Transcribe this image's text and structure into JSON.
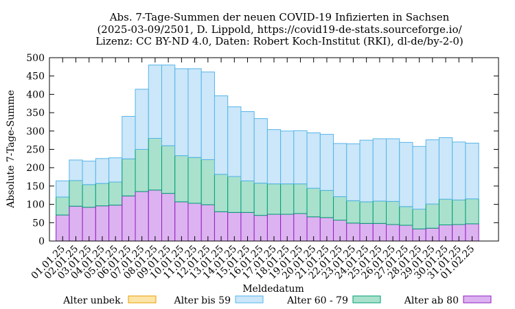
{
  "chart_data": {
    "type": "bar",
    "stacked": true,
    "title_lines": [
      "Abs. 7-Tage-Summen der neuen COVID-19 Infizierten in Sachsen",
      "(2025-03-09/2501, D. Lippold, https://covid19-de-stats.sourceforge.io/",
      "Lizenz: CC BY-ND 4.0, Daten: Robert Koch-Institut (RKI), dl-de/by-2-0)"
    ],
    "xlabel": "Meldedatum",
    "ylabel": "Absolute 7-Tage-Summe",
    "ylim": [
      0,
      500
    ],
    "yticks": [
      0,
      50,
      100,
      150,
      200,
      250,
      300,
      350,
      400,
      450,
      500
    ],
    "grid": false,
    "legend_position": "bottom",
    "categories": [
      "2024-12-31",
      "2025-01-01",
      "2025-01-02",
      "2025-01-03",
      "2025-01-04",
      "2025-01-05",
      "2025-01-06",
      "2025-01-07",
      "2025-01-08",
      "2025-01-09",
      "2025-01-10",
      "2025-01-11",
      "2025-01-12",
      "2025-01-13",
      "2025-01-14",
      "2025-01-15",
      "2025-01-16",
      "2025-01-17",
      "2025-01-18",
      "2025-01-19",
      "2025-01-20",
      "2025-01-21",
      "2025-01-22",
      "2025-01-23",
      "2025-01-24",
      "2025-01-25",
      "2025-01-26",
      "2025-01-27",
      "2025-01-28",
      "2025-01-29",
      "2025-01-30",
      "2025-01-31",
      "2025-02-01"
    ],
    "tick_labels": [
      "01.01.25",
      "02.01.25",
      "03.01.25",
      "04.01.25",
      "05.01.25",
      "06.01.25",
      "07.01.25",
      "08.01.25",
      "09.01.25",
      "10.01.25",
      "11.01.25",
      "12.01.25",
      "13.01.25",
      "14.01.25",
      "15.01.25",
      "16.01.25",
      "17.01.25",
      "18.01.25",
      "19.01.25",
      "20.01.25",
      "21.01.25",
      "22.01.25",
      "23.01.25",
      "24.01.25",
      "25.01.25",
      "26.01.25",
      "27.01.25",
      "28.01.25",
      "29.01.25",
      "30.01.25",
      "31.01.25",
      "01.02.25"
    ],
    "series": [
      {
        "name": "Alter unbek.",
        "fill": "#fde4a8",
        "stroke": "#e69f00",
        "values": [
          0,
          0,
          0,
          0,
          0,
          0,
          0,
          0,
          0,
          0,
          0,
          0,
          0,
          0,
          0,
          0,
          0,
          0,
          0,
          0,
          0,
          0,
          0,
          0,
          0,
          0,
          0,
          0,
          0,
          0,
          0,
          0,
          0
        ]
      },
      {
        "name": "Alter ab 80",
        "fill": "#ddb2f0",
        "stroke": "#8e1fbf",
        "values": [
          71,
          95,
          92,
          96,
          98,
          123,
          135,
          139,
          130,
          107,
          103,
          99,
          80,
          78,
          78,
          70,
          73,
          73,
          75,
          66,
          64,
          57,
          49,
          48,
          48,
          45,
          43,
          33,
          35,
          44,
          45,
          47,
          0
        ]
      },
      {
        "name": "Alter 60 - 79",
        "fill": "#a9e1cd",
        "stroke": "#009e73",
        "values": [
          49,
          70,
          62,
          61,
          63,
          101,
          115,
          141,
          130,
          126,
          125,
          123,
          102,
          98,
          86,
          88,
          83,
          83,
          81,
          78,
          74,
          64,
          61,
          59,
          61,
          63,
          51,
          54,
          66,
          70,
          67,
          68,
          0
        ]
      },
      {
        "name": "Alter bis 59",
        "fill": "#cbe7f9",
        "stroke": "#56b4e9",
        "values": [
          44,
          56,
          64,
          68,
          66,
          116,
          164,
          200,
          220,
          237,
          242,
          239,
          214,
          190,
          189,
          176,
          148,
          144,
          145,
          151,
          153,
          145,
          155,
          168,
          170,
          171,
          175,
          171,
          175,
          168,
          158,
          152,
          0
        ]
      }
    ],
    "legend_order": [
      "Alter unbek.",
      "Alter bis 59",
      "Alter 60 - 79",
      "Alter ab 80"
    ]
  }
}
